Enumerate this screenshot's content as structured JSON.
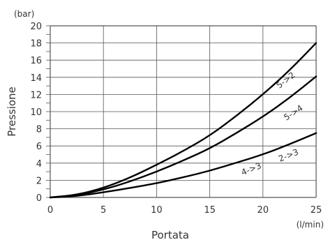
{
  "chart_data": {
    "type": "line",
    "xlabel": "Portata",
    "ylabel": "Pressione",
    "x_unit": "(l/min)",
    "y_unit": "(bar)",
    "xlim": [
      0,
      25
    ],
    "ylim": [
      0,
      20
    ],
    "x_ticks": [
      "0",
      "5",
      "10",
      "15",
      "20",
      "25"
    ],
    "y_ticks": [
      "0",
      "2",
      "4",
      "6",
      "8",
      "10",
      "12",
      "14",
      "16",
      "18",
      "20"
    ],
    "grid": true,
    "line_color": "#000000",
    "series": [
      {
        "name": "5->2",
        "x": [
          0,
          2.5,
          5,
          7.5,
          10,
          12.5,
          15,
          17.5,
          20,
          22.5,
          25
        ],
        "y": [
          0,
          0.3,
          1.1,
          2.3,
          3.8,
          5.4,
          7.2,
          9.5,
          12.0,
          14.8,
          18.0
        ]
      },
      {
        "name": "5->4",
        "x": [
          0,
          2.5,
          5,
          7.5,
          10,
          12.5,
          15,
          17.5,
          20,
          22.5,
          25
        ],
        "y": [
          0,
          0.25,
          0.9,
          1.85,
          3.0,
          4.3,
          5.7,
          7.5,
          9.4,
          11.6,
          14.1
        ]
      },
      {
        "name": "4->3",
        "x": [
          0,
          2.5,
          5,
          7.5,
          10,
          12.5,
          15,
          17.5,
          20,
          22.5,
          25
        ],
        "y": [
          0,
          0.15,
          0.6,
          1.1,
          1.65,
          2.35,
          3.1,
          4.05,
          5.0,
          6.2,
          7.5
        ]
      }
    ],
    "annotations": [
      "5->2",
      "5->4",
      "4->3",
      "2->3"
    ]
  }
}
